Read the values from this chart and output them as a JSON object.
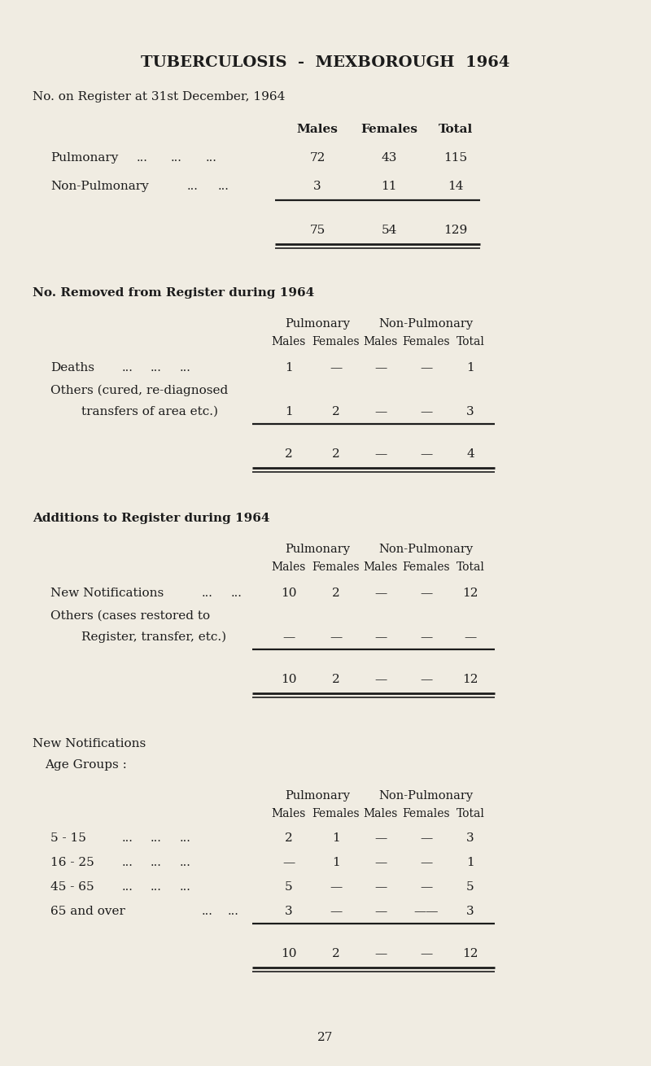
{
  "bg_color": "#f0ece2",
  "text_color": "#1c1c1c",
  "title": "TUBERCULOSIS  -  MEXBOROUGH  1964",
  "page_number": "27",
  "section1_heading": "No. on Register at 31st December, 1964",
  "section2_heading": "No. Removed from Register during 1964",
  "section3_heading": "Additions to Register during 1964",
  "section4_heading1": "New Notifications",
  "section4_heading2": "Age Groups :"
}
